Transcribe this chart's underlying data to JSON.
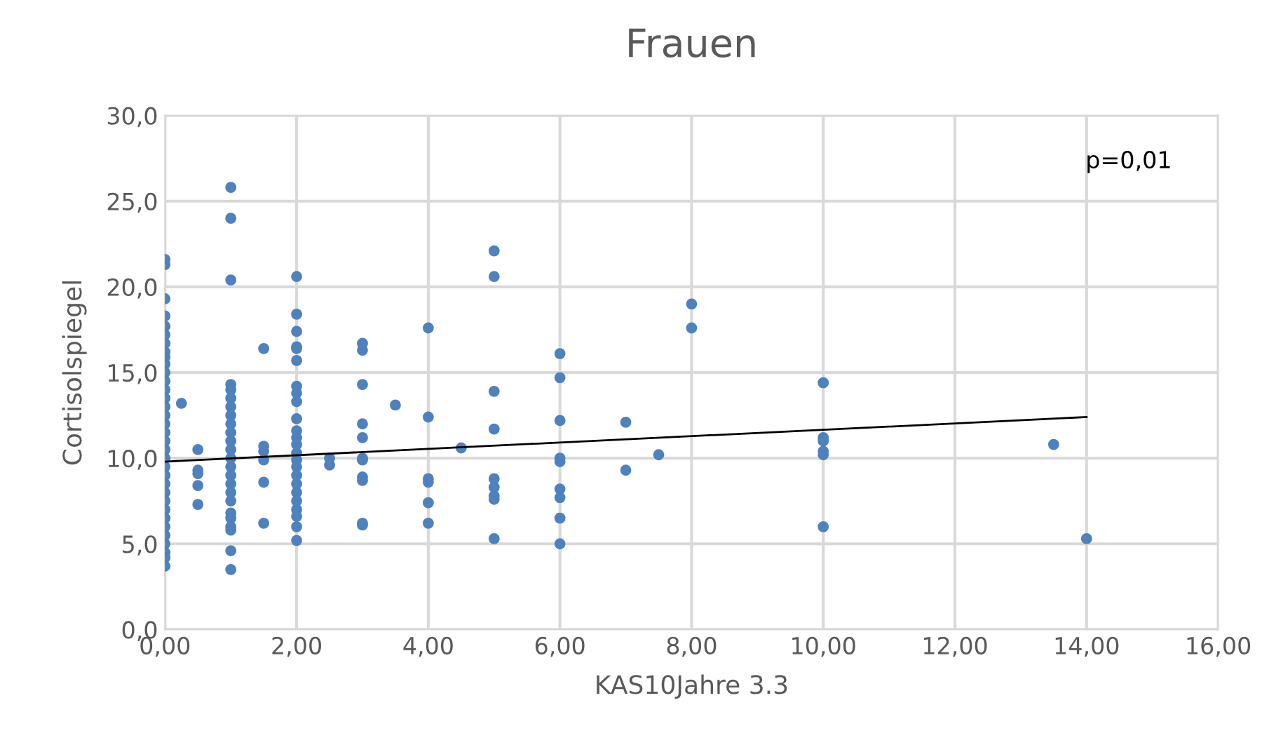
{
  "chart_data": {
    "type": "scatter",
    "title": "Frauen",
    "xlabel": "KAS10Jahre 3.3",
    "ylabel": "Cortisolspiegel",
    "annotations": [
      "p=0,01"
    ],
    "xlim": [
      0,
      16
    ],
    "ylim": [
      0,
      30
    ],
    "xticks": [
      {
        "value": 0,
        "label": "0,00"
      },
      {
        "value": 2,
        "label": "2,00"
      },
      {
        "value": 4,
        "label": "4,00"
      },
      {
        "value": 6,
        "label": "6,00"
      },
      {
        "value": 8,
        "label": "8,00"
      },
      {
        "value": 10,
        "label": "10,00"
      },
      {
        "value": 12,
        "label": "12,00"
      },
      {
        "value": 14,
        "label": "14,00"
      },
      {
        "value": 16,
        "label": "16,00"
      }
    ],
    "yticks": [
      {
        "value": 0,
        "label": "0,0"
      },
      {
        "value": 5,
        "label": "5,0"
      },
      {
        "value": 10,
        "label": "10,0"
      },
      {
        "value": 15,
        "label": "15,0"
      },
      {
        "value": 20,
        "label": "20,0"
      },
      {
        "value": 25,
        "label": "25,0"
      },
      {
        "value": 30,
        "label": "30,0"
      }
    ],
    "grid": true,
    "legend": false,
    "marker": "circle",
    "series": [
      {
        "color": "#4f81bd",
        "x": [
          0,
          0,
          0,
          0,
          0,
          0,
          0,
          0,
          0,
          0,
          0,
          0,
          0,
          0,
          0,
          0,
          0,
          0,
          0,
          0,
          0,
          0,
          0,
          0,
          0,
          0,
          0,
          0,
          0,
          0,
          0,
          0,
          0,
          0,
          0.25,
          0.5,
          0.5,
          0.5,
          0.5,
          0.5,
          1,
          1,
          1,
          1,
          1,
          1,
          1,
          1,
          1,
          1,
          1,
          1,
          1,
          1,
          1,
          1,
          1,
          1,
          1,
          1,
          1,
          1,
          1,
          1,
          1.5,
          1.5,
          1.5,
          1.5,
          1.5,
          1.5,
          2,
          2,
          2,
          2,
          2,
          2,
          2,
          2,
          2,
          2,
          2,
          2,
          2,
          2,
          2,
          2,
          2,
          2,
          2,
          2,
          2,
          2,
          2,
          2,
          2.5,
          2.5,
          3,
          3,
          3,
          3,
          3,
          3,
          3,
          3,
          3,
          3,
          3,
          3.5,
          4,
          4,
          4,
          4,
          4,
          4,
          4.5,
          5,
          5,
          5,
          5,
          5,
          5,
          5,
          5,
          5,
          6,
          6,
          6,
          6,
          6,
          6,
          6,
          6,
          6,
          7,
          7,
          7.5,
          8,
          8,
          10,
          10,
          10,
          10,
          10,
          10,
          13.5,
          14
        ],
        "values": [
          21.6,
          21.3,
          19.3,
          18.3,
          17.7,
          17.2,
          16.7,
          16.2,
          15.9,
          15.5,
          15.0,
          14.5,
          14.0,
          13.5,
          13.0,
          12.5,
          12.0,
          11.5,
          11.0,
          10.5,
          10.0,
          9.5,
          9.0,
          8.5,
          8.0,
          7.5,
          7.0,
          6.5,
          6.0,
          5.5,
          5.0,
          4.5,
          4.2,
          3.7,
          13.2,
          10.5,
          9.3,
          9.1,
          8.4,
          7.3,
          25.8,
          24.0,
          20.4,
          14.3,
          14.0,
          13.5,
          13.0,
          12.5,
          12.0,
          11.5,
          11.0,
          10.5,
          10.0,
          9.5,
          9.0,
          8.5,
          8.0,
          7.5,
          6.8,
          6.5,
          6.0,
          5.8,
          4.6,
          3.5,
          16.4,
          10.7,
          10.4,
          9.9,
          8.6,
          6.2,
          20.6,
          18.4,
          17.4,
          16.5,
          16.4,
          15.7,
          14.2,
          13.8,
          13.3,
          12.3,
          11.6,
          11.2,
          10.8,
          10.3,
          9.9,
          9.5,
          9.0,
          8.5,
          8.0,
          7.5,
          7.0,
          6.6,
          6.0,
          5.2,
          10.0,
          9.6,
          16.7,
          16.3,
          14.3,
          12.0,
          11.2,
          10.0,
          9.9,
          8.9,
          8.7,
          6.2,
          6.1,
          13.1,
          17.6,
          12.4,
          8.8,
          8.6,
          7.4,
          6.2,
          10.6,
          22.1,
          20.6,
          13.9,
          11.7,
          8.8,
          8.3,
          7.8,
          7.6,
          5.3,
          16.1,
          14.7,
          12.2,
          10.0,
          9.8,
          8.2,
          7.7,
          6.5,
          5.0,
          12.1,
          9.3,
          10.2,
          19.0,
          17.6,
          14.4,
          11.2,
          11.0,
          10.4,
          10.2,
          6.0,
          10.8,
          5.3
        ]
      },
      {
        "type": "line",
        "color": "#000000",
        "marker": "none",
        "line_style": "solid",
        "x": [
          0,
          14
        ],
        "values": [
          9.8,
          12.4
        ]
      }
    ]
  }
}
